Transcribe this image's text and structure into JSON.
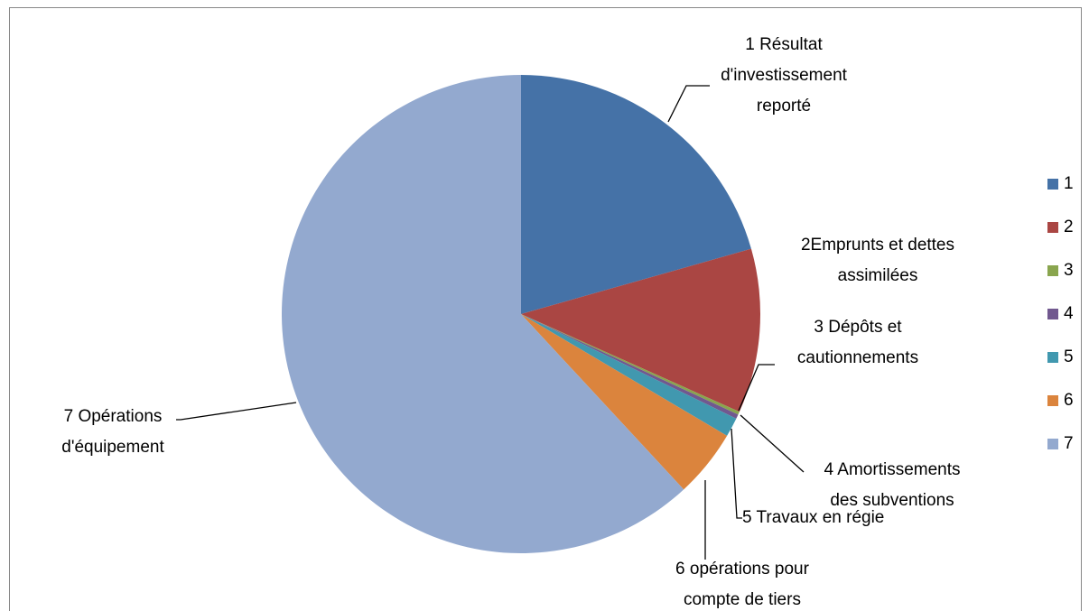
{
  "chart_data": {
    "type": "pie",
    "categories": [
      "1",
      "2",
      "3",
      "4",
      "5",
      "6",
      "7"
    ],
    "values": [
      20.6,
      11.1,
      0.2,
      0.3,
      1.3,
      4.6,
      61.9
    ],
    "labels": [
      [
        "1 Résultat",
        "d'investissement",
        "reporté"
      ],
      [
        "2Emprunts et dettes",
        "assimilées"
      ],
      [
        "3 Dépôts et",
        "cautionnements"
      ],
      [
        "4 Amortissements",
        "des subventions"
      ],
      [
        "5 Travaux en régie"
      ],
      [
        "6 opérations pour",
        "compte de tiers"
      ],
      [
        "7 Opérations",
        "d'équipement"
      ]
    ],
    "colors": [
      "#4572a7",
      "#aa4643",
      "#89a54e",
      "#71588f",
      "#4198af",
      "#db843d",
      "#93a9cf"
    ],
    "legend": "right"
  }
}
